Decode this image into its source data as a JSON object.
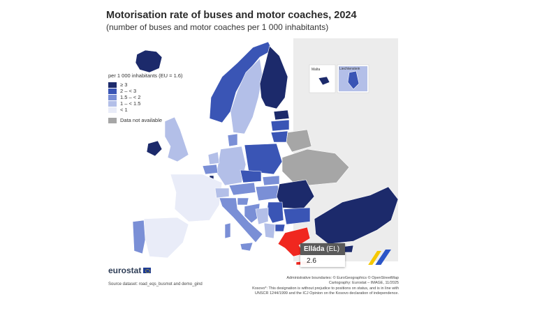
{
  "title": "Motorisation rate of buses and motor coaches, 2024",
  "subtitle": "(number of buses and motor coaches per 1 000 inhabitants)",
  "legend": {
    "title": "per 1 000 inhabitants (EU = 1.6)",
    "classes": [
      {
        "label": "≥ 3",
        "color": "#1c2a6b"
      },
      {
        "label": "2 – < 3",
        "color": "#3a55b5"
      },
      {
        "label": "1.5 – < 2",
        "color": "#7a8fd6"
      },
      {
        "label": "1 – < 1.5",
        "color": "#b3bfe8"
      },
      {
        "label": "< 1",
        "color": "#e9ecf8"
      }
    ],
    "not_available": {
      "label": "Data not available",
      "color": "#a6a6a6"
    }
  },
  "insets": [
    {
      "label": "Malta"
    },
    {
      "label": "Liechtenstein"
    }
  ],
  "highlight_color": "#f0271f",
  "tooltip": {
    "name": "Elláda",
    "code": "(EL)",
    "value": "2.6"
  },
  "branding": {
    "logo_text": "eurostat"
  },
  "source": "Source dataset: road_eqs_busmot and demo_gind",
  "credits": [
    "Administrative boundaries: © EuroGeographics © OpenStreetMap",
    "Cartography: Eurostat – IMAGE, 11/2025",
    "Kosovo*: This designation is without prejudice to positions on status, and is in line with",
    "UNSCR 1244/1999 and the ICJ Opinion on the Kosovo declaration of independence."
  ]
}
